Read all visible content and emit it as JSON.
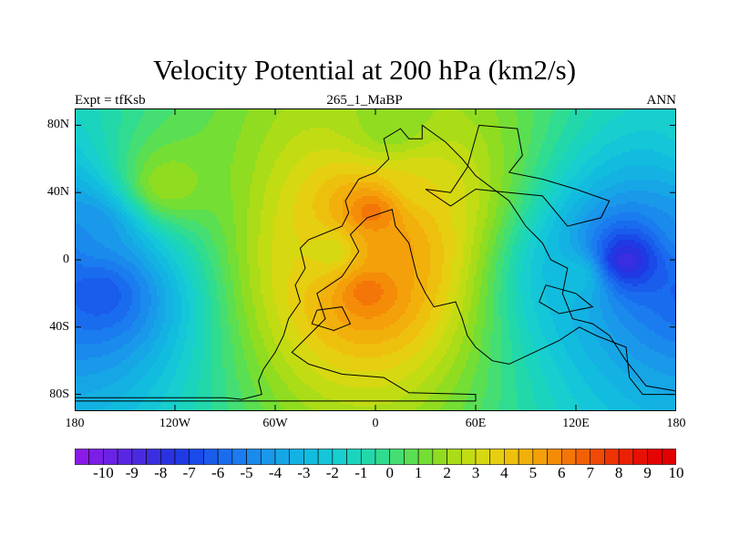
{
  "chart_data": {
    "type": "heatmap",
    "title": "Velocity Potential at 200 hPa (km2/s)",
    "subtitle_left": "Expt = tfKsb",
    "subtitle_center": "265_1_MaBP",
    "subtitle_right": "ANN",
    "x_axis": {
      "range": [
        -180,
        180
      ],
      "ticks": [
        -180,
        -120,
        -60,
        0,
        60,
        120,
        180
      ],
      "tick_labels": [
        "180",
        "120W",
        "60W",
        "0",
        "60E",
        "120E",
        "180"
      ]
    },
    "y_axis": {
      "range": [
        -90,
        90
      ],
      "ticks": [
        80,
        40,
        0,
        -40,
        -80
      ],
      "tick_labels": [
        "80N",
        "40N",
        "0",
        "40S",
        "80S"
      ]
    },
    "colorbar": {
      "levels": [
        -10.5,
        -10,
        -9.5,
        -9,
        -8.5,
        -8,
        -7.5,
        -7,
        -6.5,
        -6,
        -5.5,
        -5,
        -4.5,
        -4,
        -3.5,
        -3,
        -2.5,
        -2,
        -1.5,
        -1,
        -0.5,
        0,
        0.5,
        1,
        1.5,
        2,
        2.5,
        3,
        3.5,
        4,
        4.5,
        5,
        5.5,
        6,
        6.5,
        7,
        7.5,
        8,
        8.5,
        9,
        9.5,
        10,
        10.5
      ],
      "tick_labels": [
        "-10",
        "-9",
        "-8",
        "-7",
        "-6",
        "-5",
        "-4",
        "-3",
        "-2",
        "-1",
        "0",
        "1",
        "2",
        "3",
        "4",
        "5",
        "6",
        "7",
        "8",
        "9",
        "10"
      ],
      "tick_values": [
        -10,
        -9,
        -8,
        -7,
        -6,
        -5,
        -4,
        -3,
        -2,
        -1,
        0,
        1,
        2,
        3,
        4,
        5,
        6,
        7,
        8,
        9,
        10
      ],
      "colors": [
        "#8a1ae8",
        "#7b1ee6",
        "#6b22e4",
        "#5a26e2",
        "#4a2ae0",
        "#3a2ee0",
        "#2a32e0",
        "#1f3ae4",
        "#1a4ae8",
        "#1a5cec",
        "#1a6cee",
        "#1a7cee",
        "#1a8aec",
        "#1a98ea",
        "#16a6e6",
        "#14b2e2",
        "#12bcde",
        "#14c6d8",
        "#18cece",
        "#1ad4be",
        "#22d8aa",
        "#30dc90",
        "#44de74",
        "#5ade52",
        "#74de34",
        "#90dc20",
        "#aadc18",
        "#c2dc14",
        "#d6d812",
        "#e6ce10",
        "#eec00e",
        "#f2b00c",
        "#f4a00a",
        "#f48c08",
        "#f47608",
        "#f26006",
        "#f04a06",
        "#ee3404",
        "#ec2004",
        "#e81004",
        "#e40404",
        "#e00000"
      ]
    },
    "field_centers": [
      {
        "lon": -2,
        "lat": 28,
        "value": 6.5
      },
      {
        "lon": -5,
        "lat": -18,
        "value": 6.5
      },
      {
        "lon": 6,
        "lat": 5,
        "value": 5.5
      },
      {
        "lon": -25,
        "lat": 5,
        "value": 3.0
      },
      {
        "lon": 25,
        "lat": 45,
        "value": 3.5
      },
      {
        "lon": 150,
        "lat": 0,
        "value": -8.5
      },
      {
        "lon": 120,
        "lat": -10,
        "value": -2.5
      },
      {
        "lon": -165,
        "lat": -20,
        "value": -6.5
      },
      {
        "lon": -170,
        "lat": 18,
        "value": -4.5
      },
      {
        "lon": -125,
        "lat": 45,
        "value": 2.0
      },
      {
        "lon": 10,
        "lat": 78,
        "value": 1.5
      }
    ],
    "background_value": -2.0,
    "continent_outline": [
      [
        [
          -10,
          48
        ],
        [
          -15,
          40
        ],
        [
          -18,
          35
        ],
        [
          -16,
          28
        ],
        [
          -20,
          20
        ],
        [
          -40,
          12
        ],
        [
          -45,
          7
        ],
        [
          -42,
          -5
        ],
        [
          -48,
          -15
        ],
        [
          -45,
          -25
        ],
        [
          -52,
          -35
        ],
        [
          -55,
          -45
        ],
        [
          -60,
          -55
        ],
        [
          -67,
          -65
        ],
        [
          -70,
          -72
        ],
        [
          -68,
          -80
        ],
        [
          -80,
          -83
        ],
        [
          -90,
          -82
        ],
        [
          -120,
          -82
        ],
        [
          -150,
          -82
        ],
        [
          -180,
          -82
        ],
        [
          -180,
          -84
        ],
        [
          60,
          -84
        ],
        [
          60,
          -80
        ],
        [
          20,
          -79
        ],
        [
          5,
          -70
        ],
        [
          -20,
          -68
        ],
        [
          -40,
          -62
        ],
        [
          -50,
          -55
        ],
        [
          -40,
          -45
        ],
        [
          -30,
          -35
        ],
        [
          -35,
          -20
        ],
        [
          -20,
          -10
        ],
        [
          -10,
          5
        ],
        [
          -15,
          15
        ],
        [
          -5,
          25
        ],
        [
          10,
          30
        ],
        [
          12,
          20
        ],
        [
          20,
          10
        ],
        [
          25,
          -10
        ],
        [
          30,
          -20
        ],
        [
          35,
          -28
        ],
        [
          48,
          -25
        ],
        [
          52,
          -35
        ],
        [
          55,
          -45
        ],
        [
          60,
          -52
        ],
        [
          70,
          -60
        ],
        [
          80,
          -62
        ],
        [
          95,
          -55
        ],
        [
          110,
          -48
        ],
        [
          122,
          -40
        ],
        [
          132,
          -45
        ],
        [
          150,
          -52
        ],
        [
          152,
          -70
        ],
        [
          160,
          -80
        ],
        [
          180,
          -80
        ],
        [
          180,
          -78
        ],
        [
          162,
          -75
        ],
        [
          150,
          -60
        ],
        [
          140,
          -45
        ],
        [
          130,
          -38
        ],
        [
          118,
          -35
        ],
        [
          112,
          -20
        ],
        [
          115,
          -5
        ],
        [
          105,
          0
        ],
        [
          100,
          10
        ],
        [
          90,
          20
        ],
        [
          80,
          35
        ],
        [
          60,
          50
        ],
        [
          52,
          60
        ],
        [
          42,
          70
        ],
        [
          28,
          80
        ],
        [
          28,
          72
        ],
        [
          20,
          72
        ],
        [
          15,
          78
        ],
        [
          5,
          72
        ],
        [
          8,
          60
        ],
        [
          0,
          52
        ],
        [
          -10,
          48
        ]
      ],
      [
        [
          30,
          42
        ],
        [
          45,
          40
        ],
        [
          55,
          55
        ],
        [
          62,
          80
        ],
        [
          85,
          78
        ],
        [
          88,
          62
        ],
        [
          80,
          52
        ],
        [
          100,
          48
        ],
        [
          120,
          42
        ],
        [
          140,
          35
        ],
        [
          135,
          25
        ],
        [
          115,
          20
        ],
        [
          100,
          38
        ],
        [
          80,
          40
        ],
        [
          60,
          42
        ],
        [
          45,
          32
        ],
        [
          30,
          42
        ]
      ],
      [
        [
          -35,
          -30
        ],
        [
          -20,
          -28
        ],
        [
          -15,
          -38
        ],
        [
          -25,
          -42
        ],
        [
          -38,
          -38
        ],
        [
          -35,
          -30
        ]
      ],
      [
        [
          102,
          -15
        ],
        [
          120,
          -20
        ],
        [
          130,
          -28
        ],
        [
          110,
          -32
        ],
        [
          98,
          -25
        ],
        [
          102,
          -15
        ]
      ]
    ]
  }
}
